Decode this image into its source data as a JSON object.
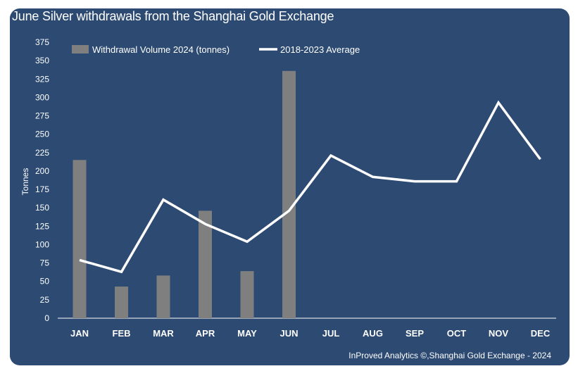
{
  "title": "June Silver withdrawals from the Shanghai Gold Exchange",
  "footer": "InProved Analytics ©,Shanghai Gold Exchange - 2024",
  "colors": {
    "background": "#2c4a72",
    "bar": "#7f7f7f",
    "line": "#ffffff",
    "text": "#ffffff"
  },
  "chart_data": {
    "type": "bar",
    "title": "June Silver withdrawals from the Shanghai Gold Exchange",
    "xlabel": "",
    "ylabel": "Tonnes",
    "ylim": [
      0,
      375
    ],
    "yticks": [
      0,
      25,
      50,
      75,
      100,
      125,
      150,
      175,
      200,
      225,
      250,
      275,
      300,
      325,
      350,
      375
    ],
    "grid": false,
    "legend_position": "top-left",
    "categories": [
      "JAN",
      "FEB",
      "MAR",
      "APR",
      "MAY",
      "JUN",
      "JUL",
      "AUG",
      "SEP",
      "OCT",
      "NOV",
      "DEC"
    ],
    "series": [
      {
        "name": "Withdrawal Volume 2024 (tonnes)",
        "type": "bar",
        "values": [
          215,
          43,
          58,
          146,
          64,
          336,
          null,
          null,
          null,
          null,
          null,
          null
        ]
      },
      {
        "name": "2018-2023 Average",
        "type": "line",
        "values": [
          79,
          63,
          161,
          128,
          104,
          146,
          221,
          192,
          186,
          186,
          293,
          216
        ]
      }
    ]
  }
}
